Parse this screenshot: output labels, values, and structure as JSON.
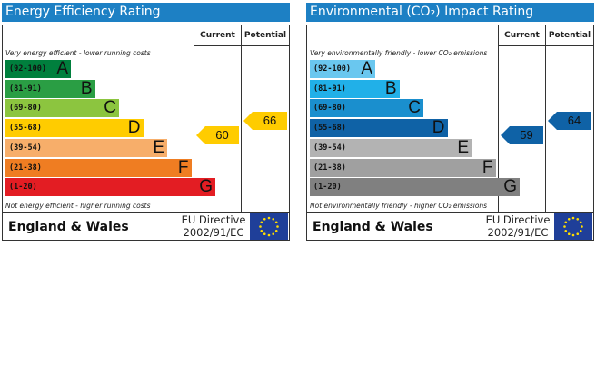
{
  "chart_data": [
    {
      "type": "bar",
      "title": "Energy Efficiency Rating",
      "columns": [
        "Current",
        "Potential"
      ],
      "top_note": "Very energy efficient - lower running costs",
      "bottom_note": "Not energy efficient - higher running costs",
      "categories": [
        "A",
        "B",
        "C",
        "D",
        "E",
        "F",
        "G"
      ],
      "bands": [
        {
          "letter": "A",
          "range": "(92-100)",
          "color": "#007f3d"
        },
        {
          "letter": "B",
          "range": "(81-91)",
          "color": "#2a9e44"
        },
        {
          "letter": "C",
          "range": "(69-80)",
          "color": "#8cc53f"
        },
        {
          "letter": "D",
          "range": "(55-68)",
          "color": "#ffcc00"
        },
        {
          "letter": "E",
          "range": "(39-54)",
          "color": "#f7ae6a"
        },
        {
          "letter": "F",
          "range": "(21-38)",
          "color": "#ef7d22"
        },
        {
          "letter": "G",
          "range": "(1-20)",
          "color": "#e31d23"
        }
      ],
      "current": {
        "value": 60,
        "color": "#ffcc00"
      },
      "potential": {
        "value": 66,
        "color": "#ffcc00"
      },
      "footer_region": "England & Wales",
      "footer_directive_line1": "EU Directive",
      "footer_directive_line2": "2002/91/EC"
    },
    {
      "type": "bar",
      "title": "Environmental (CO₂) Impact Rating",
      "columns": [
        "Current",
        "Potential"
      ],
      "top_note": "Very environmentally friendly - lower CO₂ emissions",
      "bottom_note": "Not environmentally friendly - higher CO₂ emissions",
      "categories": [
        "A",
        "B",
        "C",
        "D",
        "E",
        "F",
        "G"
      ],
      "bands": [
        {
          "letter": "A",
          "range": "(92-100)",
          "color": "#6ac7ef"
        },
        {
          "letter": "B",
          "range": "(81-91)",
          "color": "#21b0e8"
        },
        {
          "letter": "C",
          "range": "(69-80)",
          "color": "#1a8fce"
        },
        {
          "letter": "D",
          "range": "(55-68)",
          "color": "#0f62a6"
        },
        {
          "letter": "E",
          "range": "(39-54)",
          "color": "#b3b3b3"
        },
        {
          "letter": "F",
          "range": "(21-38)",
          "color": "#a0a0a0"
        },
        {
          "letter": "G",
          "range": "(1-20)",
          "color": "#808080"
        }
      ],
      "current": {
        "value": 59,
        "color": "#0f62a6"
      },
      "potential": {
        "value": 64,
        "color": "#0f62a6"
      },
      "footer_region": "England & Wales",
      "footer_directive_line1": "EU Directive",
      "footer_directive_line2": "2002/91/EC"
    }
  ],
  "flag_color": "#1f3f99",
  "star_color": "#ffdd00"
}
